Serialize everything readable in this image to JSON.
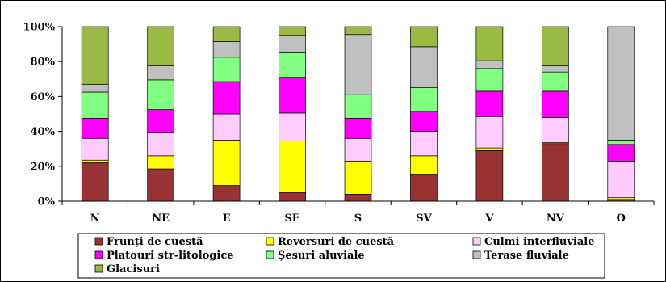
{
  "chart_data": {
    "type": "bar",
    "stacked": true,
    "percent": true,
    "categories": [
      "N",
      "NE",
      "E",
      "SE",
      "S",
      "SV",
      "V",
      "NV",
      "O"
    ],
    "ylim": [
      0,
      100
    ],
    "yticks": [
      "0%",
      "20%",
      "40%",
      "60%",
      "80%",
      "100%"
    ],
    "grid": false,
    "legend_position": "bottom",
    "series": [
      {
        "name": "Frunți de cuestă",
        "color": "#993333",
        "values": [
          22,
          18.5,
          9,
          5,
          4,
          15.5,
          29,
          33,
          1
        ]
      },
      {
        "name": "Reversuri de cuestă",
        "color": "#ffff00",
        "values": [
          1.5,
          7.5,
          26,
          29.5,
          19,
          10.5,
          1.5,
          0.5,
          1
        ]
      },
      {
        "name": "Culmi interfluviale",
        "color": "#ffccff",
        "values": [
          12.5,
          13.5,
          15,
          16,
          13,
          14,
          18,
          14.5,
          21
        ]
      },
      {
        "name": "Platouri str-litologice",
        "color": "#ff00ff",
        "values": [
          11.5,
          13,
          18.5,
          20.5,
          11.5,
          11.5,
          14.5,
          15,
          9.5
        ]
      },
      {
        "name": "Șesuri aluviale",
        "color": "#80ff80",
        "values": [
          15,
          17,
          14,
          14.5,
          13.5,
          13.5,
          13,
          11,
          2.5
        ]
      },
      {
        "name": "Terase fluviale",
        "color": "#c0c0c0",
        "values": [
          4.5,
          8,
          9,
          9.5,
          34.5,
          23.5,
          4.5,
          3.5,
          65
        ]
      },
      {
        "name": "Glacisuri",
        "color": "#99bb44",
        "values": [
          33,
          22.5,
          8.5,
          5,
          4.5,
          11.5,
          19.5,
          22.5,
          0
        ]
      }
    ]
  }
}
